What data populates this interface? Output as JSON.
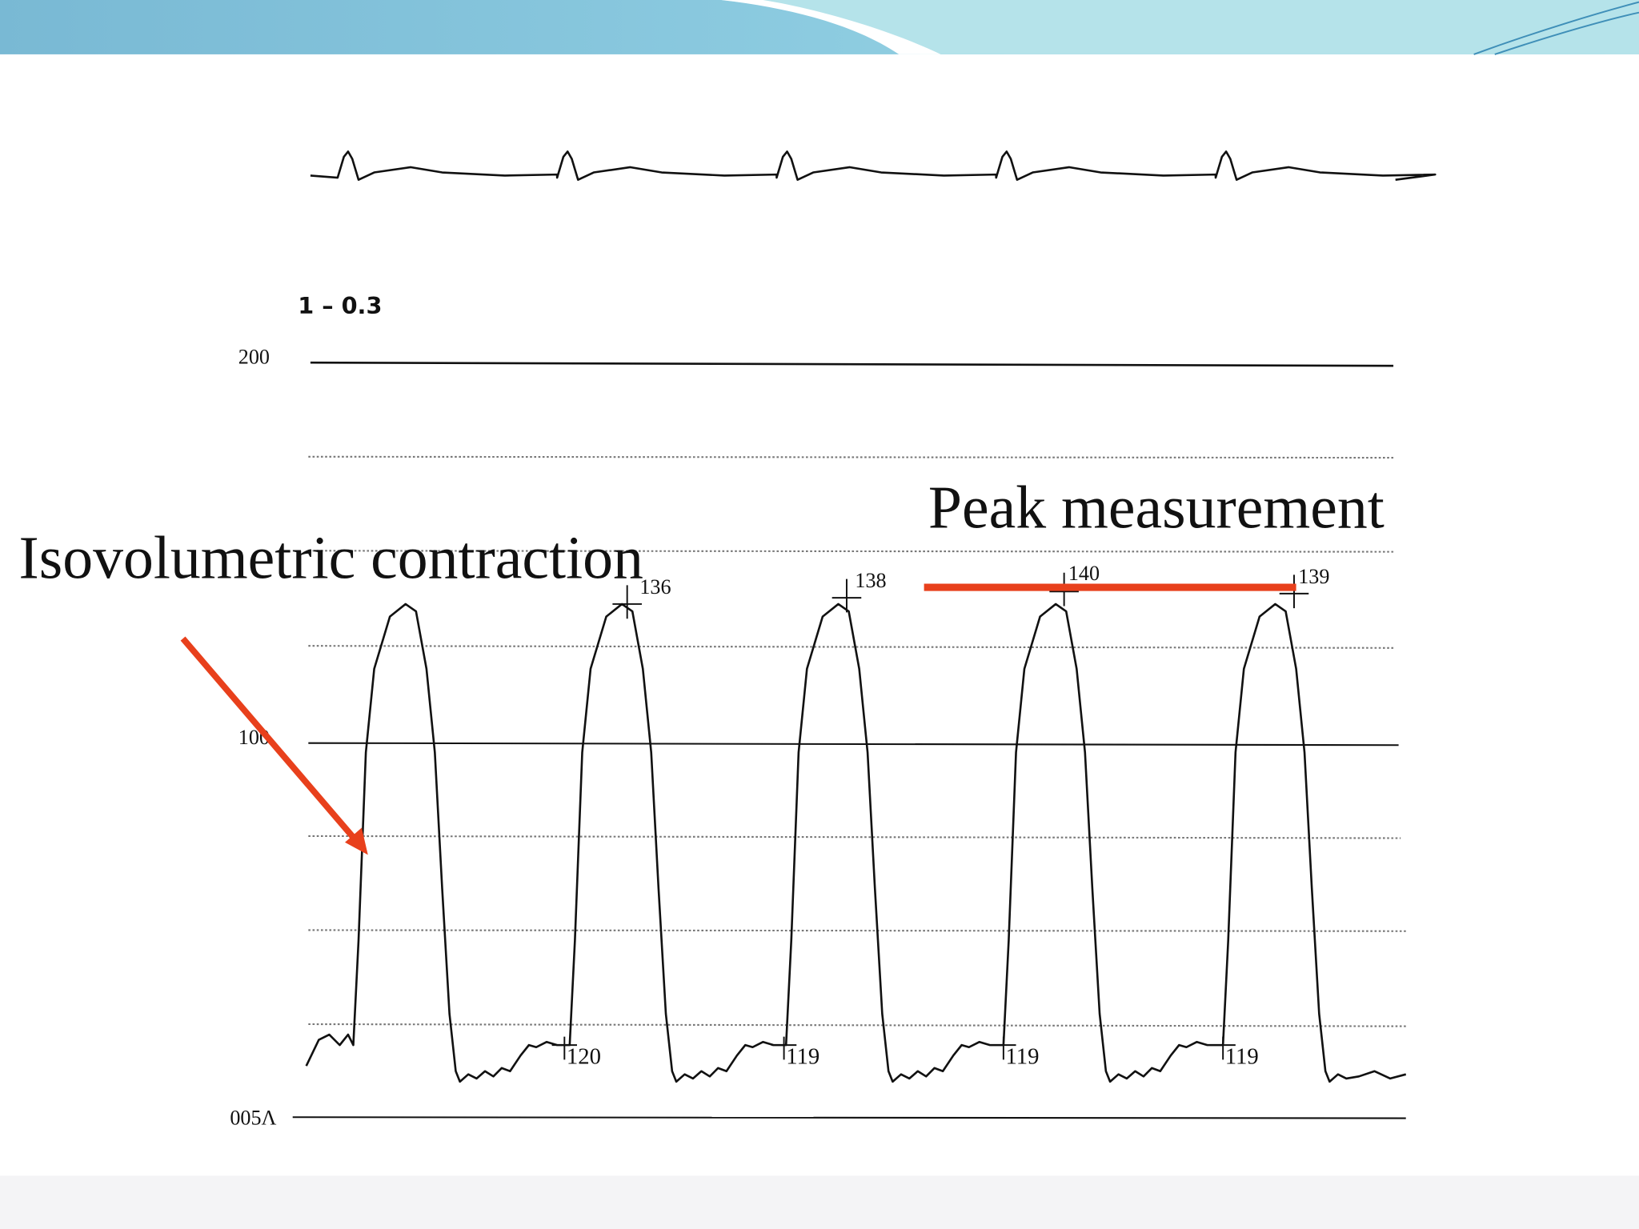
{
  "tracing": {
    "scale_label": "1 – 0.3",
    "axis_labels": [
      "200",
      "100",
      "005Λ"
    ],
    "peak_labels": [
      "136",
      "138",
      "140",
      "139"
    ],
    "trough_labels": [
      "120",
      "119",
      "119",
      "119"
    ]
  },
  "annotations": {
    "isovolumetric": "Isovolumetric contraction",
    "peak": "Peak measurement"
  }
}
